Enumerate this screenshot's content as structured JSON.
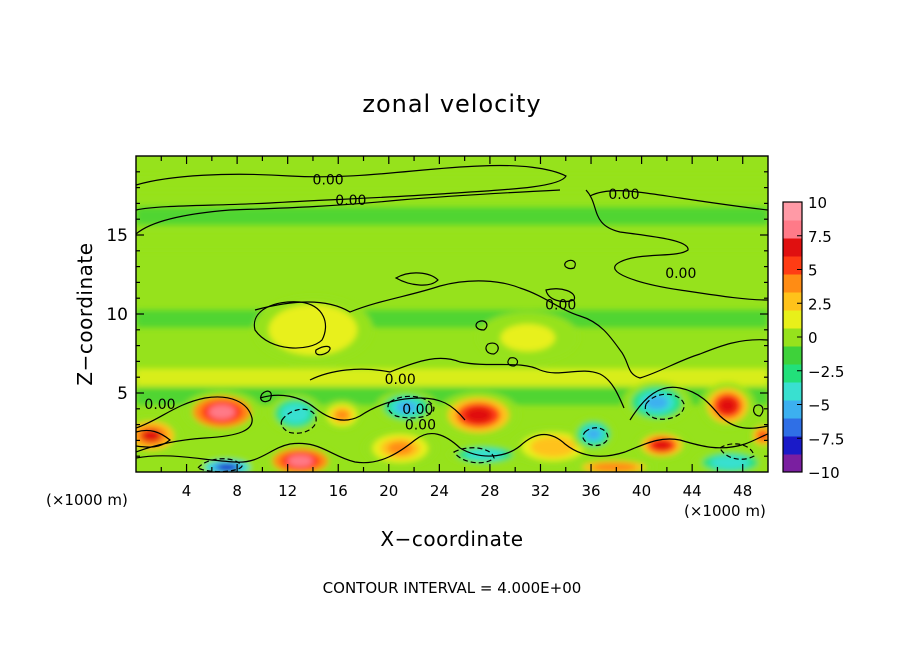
{
  "chart_data": {
    "type": "heatmap",
    "title": "zonal velocity",
    "xlabel": "X−coordinate",
    "ylabel": "Z−coordinate",
    "x_unit_left": "(×1000 m)",
    "x_unit_right": "(×1000 m)",
    "xlim": [
      0,
      50
    ],
    "ylim": [
      0,
      20
    ],
    "x_ticks": [
      4,
      8,
      12,
      16,
      20,
      24,
      28,
      32,
      36,
      40,
      44,
      48
    ],
    "x_tick_labels": [
      "4",
      "8",
      "12",
      "16",
      "20",
      "24",
      "28",
      "32",
      "36",
      "40",
      "44",
      "48"
    ],
    "y_ticks": [
      5,
      10,
      15
    ],
    "y_tick_labels": [
      "5",
      "10",
      "15"
    ],
    "colorbar": {
      "range": [
        -10,
        10
      ],
      "ticks": [
        10,
        7.5,
        5,
        2.5,
        0,
        -2.5,
        -5,
        -7.5,
        -10
      ],
      "tick_labels": [
        "10",
        "7.5",
        "5",
        "2.5",
        "0",
        "−2.5",
        "−5",
        "−7.5",
        "−10"
      ],
      "colors": [
        "#7a1fa0",
        "#1a1ac8",
        "#2f6fe6",
        "#3cb0f0",
        "#39e0d0",
        "#22e07a",
        "#3ed23a",
        "#96e21c",
        "#e8f01a",
        "#ffc21a",
        "#ff8c14",
        "#ff3c14",
        "#e01010",
        "#ff7a88",
        "#ff9aa6"
      ]
    },
    "contour_labels": [
      {
        "text": "0.00",
        "x": 15.2,
        "y": 18.5
      },
      {
        "text": "0.00",
        "x": 17.0,
        "y": 17.2
      },
      {
        "text": "0.00",
        "x": 38.6,
        "y": 17.6
      },
      {
        "text": "0.00",
        "x": 43.1,
        "y": 12.6
      },
      {
        "text": "0.00",
        "x": 33.6,
        "y": 10.6
      },
      {
        "text": "0.00",
        "x": 20.9,
        "y": 5.9
      },
      {
        "text": "0.00",
        "x": 22.5,
        "y": 3.0
      },
      {
        "text": "0.00",
        "x": 1.9,
        "y": 4.3
      },
      {
        "text": "0.00",
        "x": 22.3,
        "y": 4.0
      }
    ],
    "features": [
      {
        "kind": "band",
        "x": [
          0,
          50
        ],
        "y": 18.3,
        "value": 0.5
      },
      {
        "kind": "band",
        "x": [
          0,
          50
        ],
        "y": 16.2,
        "value": -1.2
      },
      {
        "kind": "band",
        "x": [
          0,
          50
        ],
        "y": 14.6,
        "value": 0.6
      },
      {
        "kind": "band",
        "x": [
          0,
          50
        ],
        "y": 9.7,
        "value": -1.5
      },
      {
        "kind": "band",
        "x": [
          0,
          50
        ],
        "y": 6.0,
        "value": 0.8
      },
      {
        "kind": "band",
        "x": [
          0,
          50
        ],
        "y": 4.8,
        "value": -2.0
      },
      {
        "kind": "blob",
        "x": 1.2,
        "y": 2.3,
        "rx": 1.8,
        "ry": 0.9,
        "value": 6.0
      },
      {
        "kind": "blob",
        "x": 6.8,
        "y": 3.8,
        "rx": 2.3,
        "ry": 1.0,
        "value": 7.5
      },
      {
        "kind": "blob",
        "x": 7.2,
        "y": 0.3,
        "rx": 1.8,
        "ry": 0.5,
        "value": -8.0
      },
      {
        "kind": "blob",
        "x": 13.0,
        "y": 0.7,
        "rx": 2.2,
        "ry": 0.8,
        "value": 7.5
      },
      {
        "kind": "blob",
        "x": 12.6,
        "y": 3.7,
        "rx": 1.6,
        "ry": 0.9,
        "value": -4.5
      },
      {
        "kind": "blob",
        "x": 16.3,
        "y": 3.6,
        "rx": 1.2,
        "ry": 0.7,
        "value": 4.0
      },
      {
        "kind": "blob",
        "x": 21.4,
        "y": 4.1,
        "rx": 1.8,
        "ry": 0.8,
        "value": -5.0
      },
      {
        "kind": "blob",
        "x": 27.1,
        "y": 3.6,
        "rx": 2.4,
        "ry": 1.1,
        "value": 6.5
      },
      {
        "kind": "blob",
        "x": 27.6,
        "y": 1.1,
        "rx": 2.2,
        "ry": 0.5,
        "value": -4.5
      },
      {
        "kind": "blob",
        "x": 20.9,
        "y": 1.5,
        "rx": 2.2,
        "ry": 0.9,
        "value": 3.5
      },
      {
        "kind": "blob",
        "x": 33.0,
        "y": 1.6,
        "rx": 2.5,
        "ry": 0.9,
        "value": 3.2
      },
      {
        "kind": "blob",
        "x": 36.2,
        "y": 2.4,
        "rx": 1.3,
        "ry": 0.8,
        "value": -5.5
      },
      {
        "kind": "blob",
        "x": 37.8,
        "y": 0.3,
        "rx": 2.5,
        "ry": 0.4,
        "value": 4.5
      },
      {
        "kind": "blob",
        "x": 41.2,
        "y": 4.4,
        "rx": 2.0,
        "ry": 1.0,
        "value": -6.0
      },
      {
        "kind": "blob",
        "x": 41.6,
        "y": 1.7,
        "rx": 1.6,
        "ry": 0.7,
        "value": 7.0
      },
      {
        "kind": "blob",
        "x": 46.8,
        "y": 4.2,
        "rx": 1.6,
        "ry": 1.1,
        "value": 7.0
      },
      {
        "kind": "blob",
        "x": 47.0,
        "y": 0.6,
        "rx": 2.2,
        "ry": 0.6,
        "value": -4.5
      },
      {
        "kind": "blob",
        "x": 49.6,
        "y": 2.3,
        "rx": 0.8,
        "ry": 0.6,
        "value": 5.0
      },
      {
        "kind": "blob",
        "x": 14.0,
        "y": 9.0,
        "rx": 3.5,
        "ry": 1.6,
        "value": 1.8
      },
      {
        "kind": "blob",
        "x": 31.0,
        "y": 8.5,
        "rx": 3.0,
        "ry": 1.2,
        "value": 1.2
      }
    ]
  },
  "footer": {
    "contour_interval": "CONTOUR INTERVAL = 4.000E+00"
  }
}
